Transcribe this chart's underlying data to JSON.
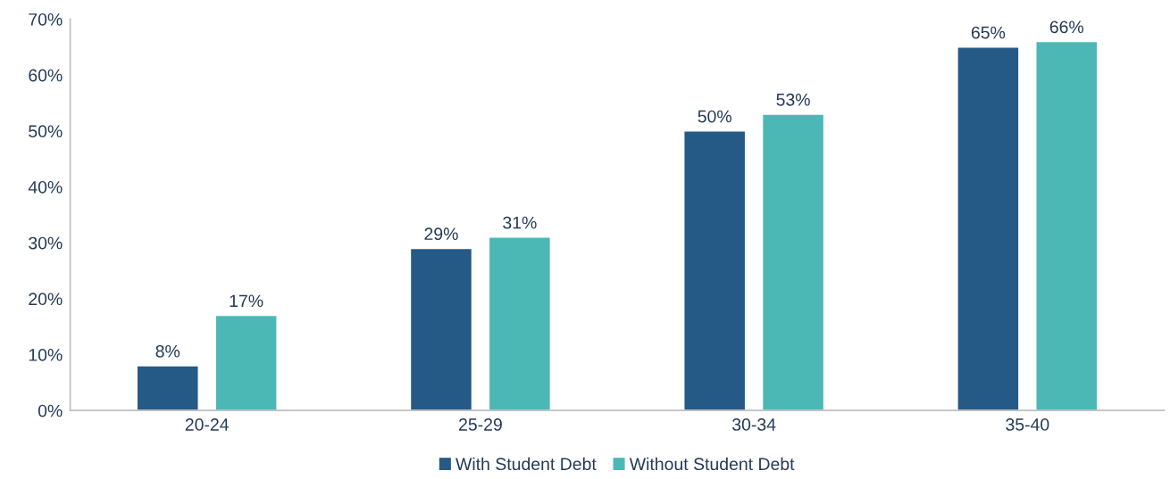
{
  "chart_data": {
    "type": "bar",
    "categories": [
      "20-24",
      "25-29",
      "30-34",
      "35-40"
    ],
    "series": [
      {
        "name": "With Student Debt",
        "color": "#255a86",
        "values": [
          8,
          29,
          50,
          65
        ],
        "value_labels": [
          "8%",
          "29%",
          "50%",
          "65%"
        ]
      },
      {
        "name": "Without Student Debt",
        "color": "#4bb8b6",
        "values": [
          17,
          31,
          53,
          66
        ],
        "value_labels": [
          "17%",
          "31%",
          "53%",
          "66%"
        ]
      }
    ],
    "ylim": [
      0,
      70
    ],
    "yticks": [
      {
        "value": 0,
        "label": "0%"
      },
      {
        "value": 10,
        "label": "10%"
      },
      {
        "value": 20,
        "label": "20%"
      },
      {
        "value": 30,
        "label": "30%"
      },
      {
        "value": 40,
        "label": "40%"
      },
      {
        "value": 50,
        "label": "50%"
      },
      {
        "value": 60,
        "label": "60%"
      },
      {
        "value": 70,
        "label": "70%"
      }
    ],
    "grid": false,
    "legend": "bottom"
  }
}
